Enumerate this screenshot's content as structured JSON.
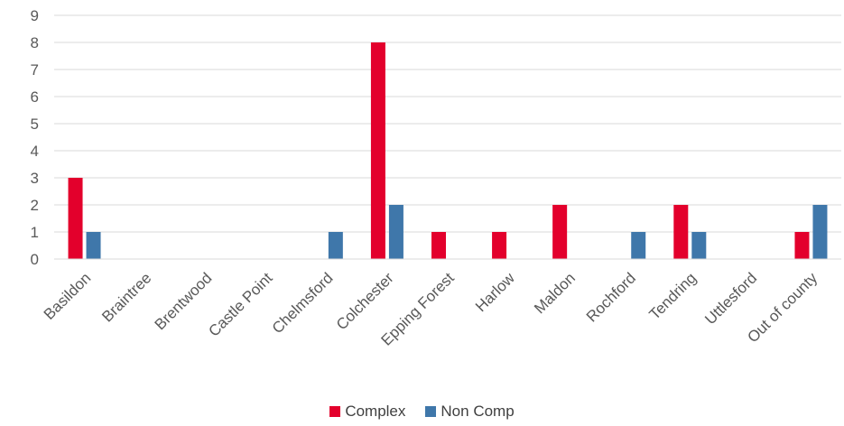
{
  "chart_data": {
    "type": "bar",
    "title": "",
    "xlabel": "",
    "ylabel": "",
    "ylim": [
      0,
      9
    ],
    "yticks": [
      0,
      1,
      2,
      3,
      4,
      5,
      6,
      7,
      8,
      9
    ],
    "grid": true,
    "legend_position": "bottom",
    "categories": [
      "Basildon",
      "Braintree",
      "Brentwood",
      "Castle Point",
      "Chelmsford",
      "Colchester",
      "Epping Forest",
      "Harlow",
      "Maldon",
      "Rochford",
      "Tendring",
      "Uttlesford",
      "Out of county"
    ],
    "series": [
      {
        "name": "Complex",
        "color": "#E3002C",
        "values": [
          3,
          0,
          0,
          0,
          0,
          8,
          1,
          1,
          2,
          0,
          2,
          0,
          1
        ]
      },
      {
        "name": "Non Comp",
        "color": "#3F77AA",
        "values": [
          1,
          0,
          0,
          0,
          1,
          2,
          0,
          0,
          0,
          1,
          1,
          0,
          2
        ]
      }
    ]
  }
}
